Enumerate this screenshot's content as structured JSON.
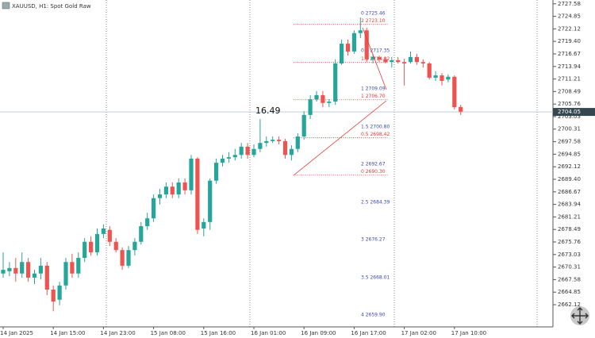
{
  "header": {
    "symbol": "XAUUSD, H1:  Spot Gold Raw"
  },
  "chart_data": {
    "type": "candlestick",
    "categories": [
      "14 Jan 2025",
      null,
      null,
      null,
      null,
      null,
      null,
      null,
      "14 Jan 15:00",
      null,
      null,
      null,
      null,
      null,
      null,
      null,
      "14 Jan 23:00",
      null,
      null,
      null,
      null,
      null,
      null,
      null,
      "15 Jan 08:00",
      null,
      null,
      null,
      null,
      null,
      null,
      null,
      "15 Jan 16:00",
      null,
      null,
      null,
      null,
      null,
      null,
      null,
      "16 Jan 01:00",
      null,
      null,
      null,
      null,
      null,
      null,
      null,
      "16 Jan 09:00",
      null,
      null,
      null,
      null,
      null,
      null,
      null,
      "16 Jan 17:00",
      null,
      null,
      null,
      null,
      null,
      null,
      null,
      "17 Jan 02:00",
      null,
      null,
      null,
      null,
      null,
      null,
      null,
      "17 Jan 10:00",
      null
    ],
    "open": [
      2668.9,
      2669.4,
      2670.1,
      2668.9,
      2671.4,
      2668.0,
      2668.9,
      2670.6,
      2665.4,
      2663.2,
      2666.3,
      2671.4,
      2668.9,
      2672.3,
      2675.8,
      2673.5,
      2677.5,
      2678.4,
      2675.8,
      2674.0,
      2670.6,
      2674.0,
      2675.8,
      2679.2,
      2680.9,
      2685.3,
      2686.1,
      2687.8,
      2686.1,
      2688.7,
      2687.0,
      2693.9,
      2678.7,
      2680.1,
      2689.1,
      2693.0,
      2693.9,
      2694.2,
      2694.7,
      2696.5,
      2694.7,
      2696.0,
      2697.3,
      2697.7,
      2698.0,
      2697.7,
      2694.7,
      2696.0,
      2698.7,
      2703.4,
      2706.8,
      2707.7,
      2706.0,
      2706.3,
      2714.6,
      2718.9,
      2717.2,
      2721.2,
      2721.8,
      2715.5,
      2716.0,
      2715.5,
      2714.9,
      2715.3,
      2714.9,
      2714.9,
      2716.0,
      2714.9,
      2714.6,
      2711.5,
      2712.0,
      2711.1,
      2711.7,
      2705.1
    ],
    "high": [
      2673.5,
      2671.4,
      2672.3,
      2673.5,
      2672.3,
      2669.7,
      2672.3,
      2671.4,
      2666.3,
      2667.1,
      2672.3,
      2673.2,
      2673.5,
      2676.6,
      2677.0,
      2678.7,
      2679.6,
      2679.2,
      2676.6,
      2674.6,
      2674.9,
      2676.6,
      2680.1,
      2682.1,
      2686.1,
      2687.3,
      2688.7,
      2688.7,
      2689.6,
      2689.6,
      2694.7,
      2694.2,
      2680.9,
      2689.6,
      2693.9,
      2694.7,
      2695.3,
      2696.0,
      2697.3,
      2697.3,
      2697.0,
      2702.5,
      2698.7,
      2698.7,
      2698.7,
      2698.2,
      2696.8,
      2699.4,
      2704.2,
      2707.7,
      2708.6,
      2708.6,
      2706.8,
      2715.5,
      2719.8,
      2719.8,
      2721.8,
      2724.6,
      2722.4,
      2716.7,
      2716.3,
      2716.0,
      2716.0,
      2716.0,
      2715.6,
      2717.2,
      2716.7,
      2715.5,
      2714.9,
      2712.9,
      2712.5,
      2712.2,
      2712.0,
      2705.6
    ],
    "low": [
      2668.0,
      2668.3,
      2667.1,
      2668.0,
      2667.1,
      2666.6,
      2667.6,
      2664.2,
      2660.7,
      2662.0,
      2665.4,
      2668.0,
      2668.0,
      2671.4,
      2672.8,
      2672.8,
      2676.6,
      2674.9,
      2673.5,
      2669.7,
      2670.1,
      2672.8,
      2675.2,
      2678.4,
      2680.1,
      2683.9,
      2685.3,
      2685.3,
      2685.3,
      2686.1,
      2686.1,
      2677.5,
      2677.0,
      2678.4,
      2688.4,
      2692.2,
      2693.0,
      2693.5,
      2693.9,
      2693.9,
      2694.2,
      2695.3,
      2696.5,
      2697.3,
      2697.0,
      2693.9,
      2693.5,
      2695.3,
      2698.0,
      2702.5,
      2706.3,
      2705.1,
      2705.1,
      2705.6,
      2714.3,
      2716.3,
      2716.7,
      2720.1,
      2714.9,
      2714.6,
      2714.9,
      2714.6,
      2713.7,
      2714.6,
      2709.8,
      2714.6,
      2714.3,
      2713.7,
      2711.1,
      2710.8,
      2709.8,
      2710.5,
      2704.6,
      2703.4
    ],
    "close": [
      2669.7,
      2670.1,
      2668.9,
      2671.4,
      2668.0,
      2668.9,
      2670.6,
      2665.4,
      2662.8,
      2666.3,
      2671.4,
      2668.9,
      2672.3,
      2675.8,
      2673.5,
      2677.5,
      2678.7,
      2675.8,
      2674.0,
      2670.6,
      2674.0,
      2675.8,
      2679.2,
      2680.9,
      2685.3,
      2686.1,
      2687.8,
      2686.1,
      2688.7,
      2687.0,
      2693.9,
      2678.4,
      2680.1,
      2689.1,
      2693.0,
      2693.9,
      2694.2,
      2694.7,
      2696.5,
      2694.7,
      2696.0,
      2697.3,
      2697.7,
      2698.0,
      2697.7,
      2694.7,
      2696.0,
      2698.7,
      2703.4,
      2706.8,
      2707.7,
      2706.0,
      2706.3,
      2714.6,
      2718.9,
      2717.2,
      2721.2,
      2721.8,
      2715.5,
      2716.0,
      2715.5,
      2714.9,
      2715.3,
      2714.9,
      2714.6,
      2716.0,
      2714.9,
      2714.6,
      2711.5,
      2712.0,
      2710.8,
      2711.7,
      2705.1,
      2704.1
    ],
    "up_color": "#26a69a",
    "down_color": "#ef5350",
    "ylim": [
      2657.29,
      2728.4
    ],
    "yticks": [
      2662.12,
      2664.85,
      2667.58,
      2670.31,
      2673.03,
      2675.76,
      2678.49,
      2681.21,
      2683.94,
      2686.67,
      {
        "value": 2689.4,
        "label": "2689.40"
      },
      2692.12,
      2694.85,
      2697.58,
      2700.31,
      2703.03,
      2705.76,
      2708.49,
      2711.21,
      2713.94,
      2716.67,
      {
        "value": 2719.4,
        "label": "2719.40"
      },
      2722.12,
      2724.85,
      2727.58
    ],
    "current_price": 2704.05,
    "annotation": "16.49",
    "fib_retracement": [
      {
        "label": "2 2723.10",
        "price": 2723.1
      },
      {
        "label": "1.5 2714.82",
        "price": 2714.82
      },
      {
        "label": "1 2706.70",
        "price": 2706.7
      },
      {
        "label": "0.5 2698.42",
        "price": 2698.42
      },
      {
        "label": "0 2690.30",
        "price": 2690.3
      }
    ],
    "fib_expansion": [
      {
        "label": "0 2725.46",
        "price": 2725.46
      },
      {
        "label": "0.5 2717.35",
        "price": 2717.35
      },
      {
        "label": "1 2709.09",
        "price": 2709.09
      },
      {
        "label": "1.5 2700.80",
        "price": 2700.8
      },
      {
        "label": "2 2692.67",
        "price": 2692.67
      },
      {
        "label": "2.5 2684.39",
        "price": 2684.39
      },
      {
        "label": "3 2676.27",
        "price": 2676.27
      },
      {
        "label": "3.5 2668.01",
        "price": 2668.01
      },
      {
        "label": "4 2659.90",
        "price": 2659.9
      }
    ]
  }
}
